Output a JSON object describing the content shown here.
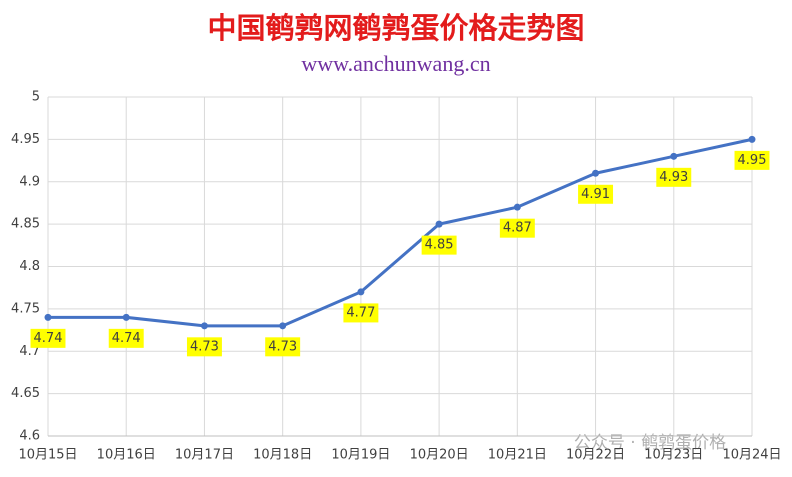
{
  "chart_data": {
    "type": "line",
    "title": "中国鹌鹑网鹌鹑蛋价格走势图",
    "subtitle": "www.anchunwang.cn",
    "watermark": "公众号 · 鹌鹑蛋价格",
    "categories": [
      "10月15日",
      "10月16日",
      "10月17日",
      "10月18日",
      "10月19日",
      "10月20日",
      "10月21日",
      "10月22日",
      "10月23日",
      "10月24日"
    ],
    "series": [
      {
        "name": "价格",
        "color": "#4472c4",
        "values": [
          4.74,
          4.74,
          4.73,
          4.73,
          4.77,
          4.85,
          4.87,
          4.91,
          4.93,
          4.95
        ]
      }
    ],
    "ylim": [
      4.6,
      5
    ],
    "yticks": [
      4.6,
      4.65,
      4.7,
      4.75,
      4.8,
      4.85,
      4.9,
      4.95,
      5
    ],
    "grid": true,
    "label_color": "#ffff00"
  }
}
